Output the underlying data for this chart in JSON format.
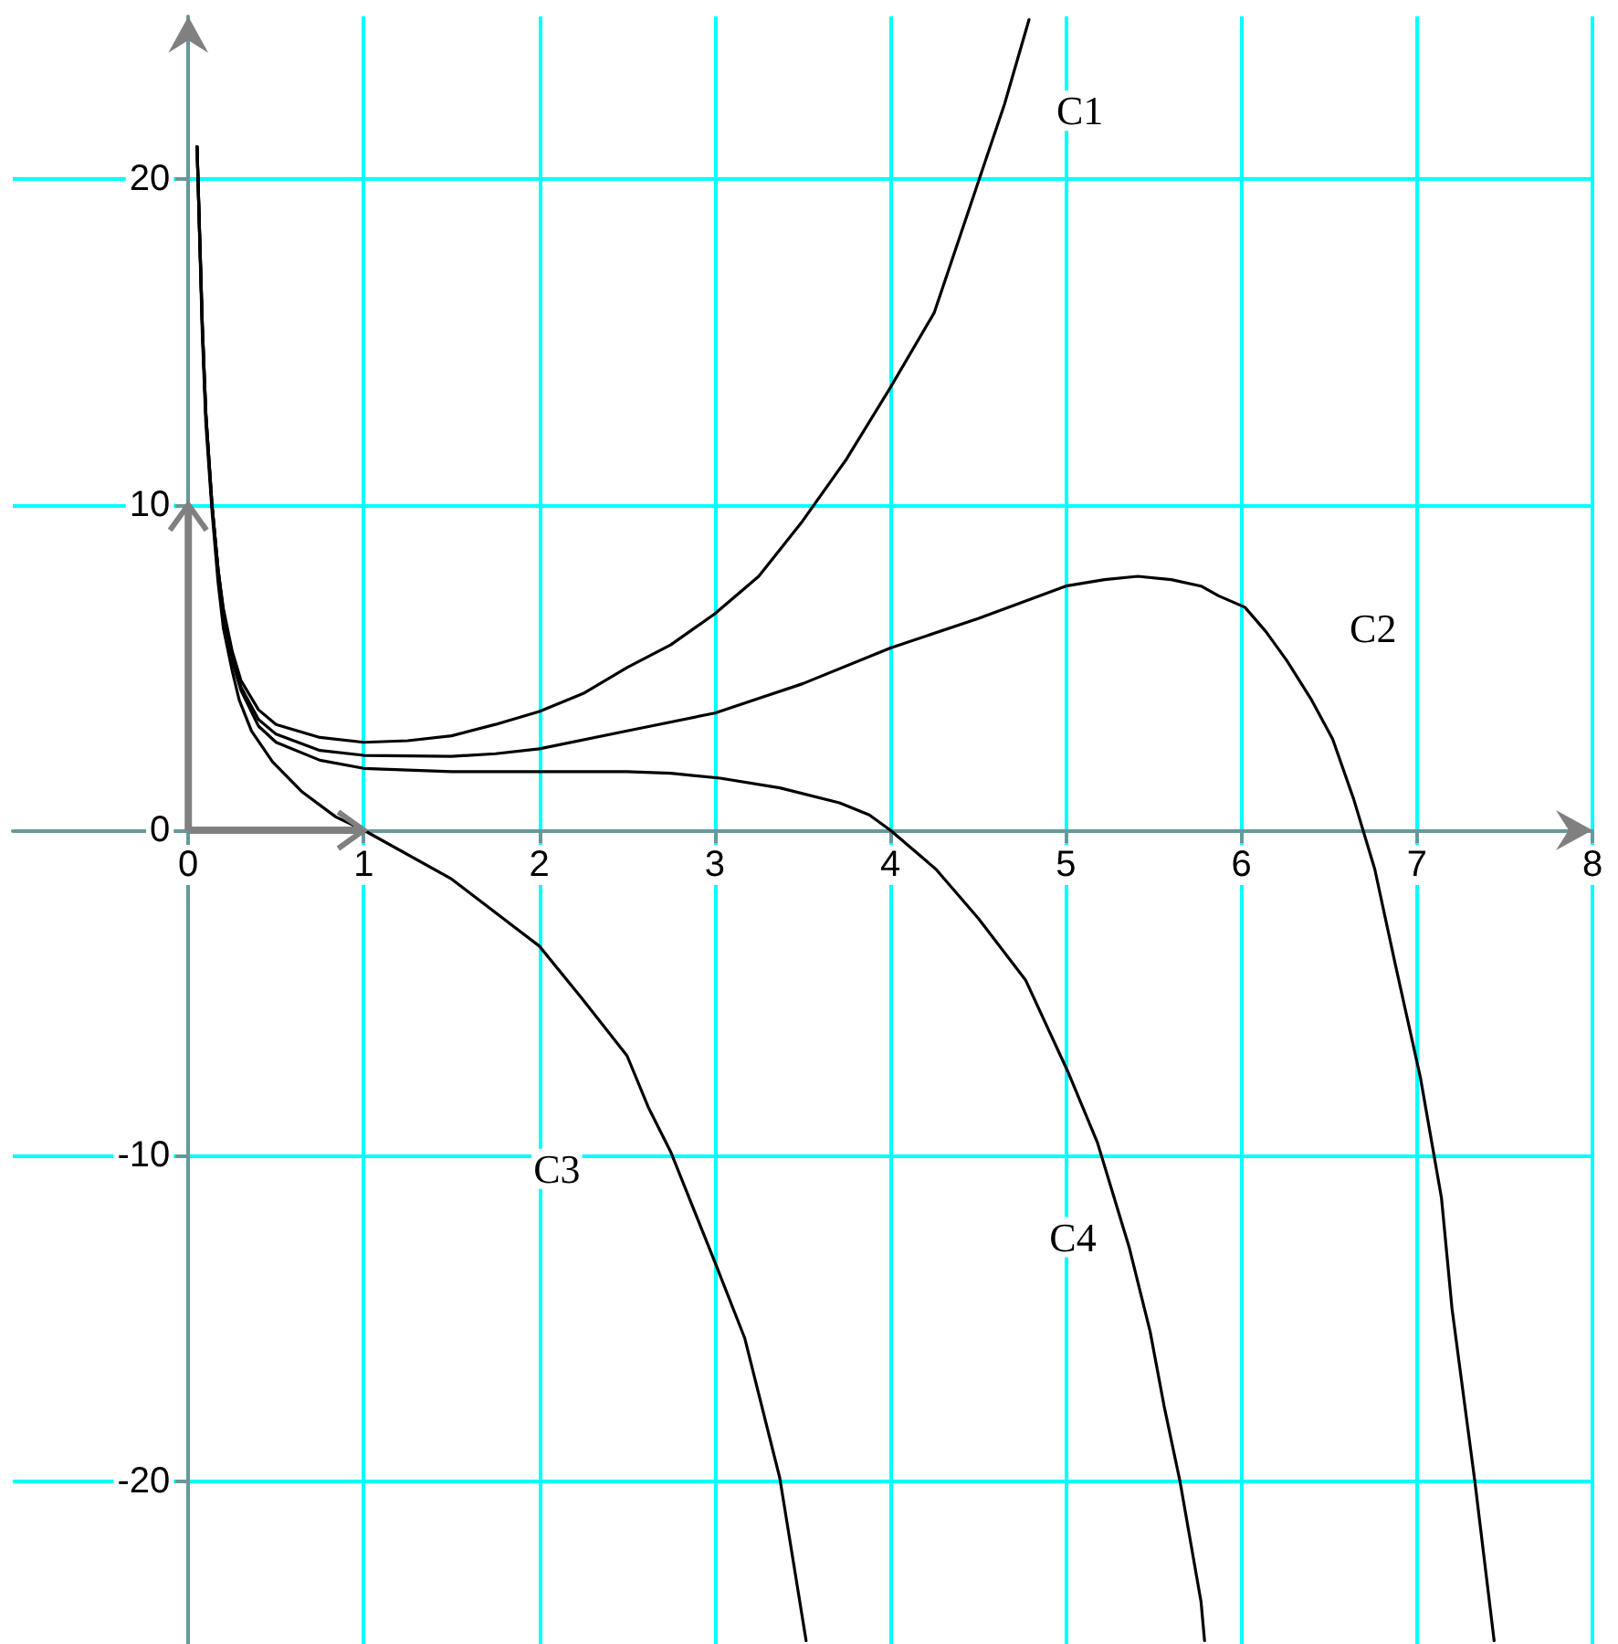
{
  "chart_data": {
    "type": "line",
    "xlim": [
      -1,
      8
    ],
    "ylim": [
      -25,
      25
    ],
    "xticks": [
      0,
      1,
      2,
      3,
      4,
      5,
      6,
      7,
      8
    ],
    "yticks": [
      -20,
      -10,
      0,
      10,
      20
    ],
    "grid": true,
    "marker": "none",
    "line_style": "solid",
    "series": [
      {
        "color": "#000000",
        "x": [
          0.05,
          0.08,
          0.1,
          0.135,
          0.17,
          0.2,
          0.25,
          0.3,
          0.4,
          0.5,
          0.75,
          1,
          1.25,
          1.5,
          1.75,
          2,
          2.25,
          2.5,
          2.75,
          3,
          3.25,
          3.5,
          3.75,
          4,
          4.25,
          4.5,
          4.65,
          4.79
        ],
        "values": [
          21,
          15.5,
          12.8,
          10,
          8,
          6.8,
          5.5,
          4.6,
          3.7,
          3.25,
          2.85,
          2.7,
          2.75,
          2.9,
          3.25,
          3.65,
          4.2,
          5.0,
          5.7,
          6.65,
          7.8,
          9.5,
          11.4,
          13.6,
          15.9,
          19.9,
          22.3,
          24.9
        ]
      },
      {
        "color": "#000000",
        "x": [
          0.05,
          0.08,
          0.1,
          0.135,
          0.17,
          0.2,
          0.25,
          0.3,
          0.4,
          0.5,
          0.75,
          1,
          1.5,
          1.75,
          2,
          2.5,
          3,
          3.5,
          4,
          4.5,
          5,
          5.22,
          5.41,
          5.6,
          5.77,
          5.87,
          6.02,
          6.14,
          6.26,
          6.4,
          6.52,
          6.64,
          6.76,
          6.88,
          7.02,
          7.14,
          7.2,
          7.33,
          7.44
        ],
        "values": [
          21,
          15.5,
          12.8,
          10,
          8,
          6.7,
          5.3,
          4.4,
          3.4,
          2.95,
          2.45,
          2.3,
          2.27,
          2.35,
          2.5,
          3.05,
          3.6,
          4.5,
          5.6,
          6.5,
          7.5,
          7.7,
          7.8,
          7.7,
          7.5,
          7.2,
          6.85,
          6.1,
          5.2,
          4.0,
          2.8,
          0.95,
          -1.2,
          -4.2,
          -7.6,
          -11.3,
          -14.7,
          -20,
          -24.9
        ]
      },
      {
        "color": "#000000",
        "x": [
          0.05,
          0.08,
          0.1,
          0.135,
          0.17,
          0.2,
          0.25,
          0.29,
          0.36,
          0.48,
          0.65,
          0.84,
          1,
          1.5,
          2,
          2.24,
          2.5,
          2.62,
          2.75,
          3.01,
          3.17,
          3.37,
          3.52
        ],
        "values": [
          21,
          15.2,
          12.5,
          9.8,
          7.6,
          6.2,
          4.9,
          4.0,
          3.05,
          2.1,
          1.17,
          0.41,
          0,
          -1.5,
          -3.56,
          -5.15,
          -6.93,
          -8.5,
          -9.9,
          -13.4,
          -15.6,
          -19.9,
          -24.9
        ]
      },
      {
        "color": "#000000",
        "x": [
          0.05,
          0.08,
          0.1,
          0.135,
          0.17,
          0.2,
          0.25,
          0.3,
          0.4,
          0.5,
          0.75,
          1,
          1.5,
          2,
          2.5,
          2.75,
          3.03,
          3.37,
          3.71,
          3.88,
          4,
          4.26,
          4.5,
          4.77,
          5.01,
          5.18,
          5.36,
          5.48,
          5.56,
          5.65,
          5.77,
          5.79
        ],
        "values": [
          21,
          15.5,
          12.8,
          10,
          8,
          6.6,
          5.2,
          4.3,
          3.2,
          2.7,
          2.15,
          1.9,
          1.8,
          1.8,
          1.8,
          1.75,
          1.6,
          1.3,
          0.84,
          0.47,
          0,
          -1.2,
          -2.7,
          -4.6,
          -7.4,
          -9.6,
          -12.8,
          -15.4,
          -17.7,
          -20,
          -23.7,
          -24.9
        ]
      }
    ],
    "annotations": [
      {
        "text": "C1",
        "x": 5.08,
        "y": 22.1
      },
      {
        "text": "C2",
        "x": 6.75,
        "y": 6.2
      },
      {
        "text": "C3",
        "x": 2.1,
        "y": -10.4
      },
      {
        "text": "C4",
        "x": 5.04,
        "y": -12.5
      }
    ]
  }
}
